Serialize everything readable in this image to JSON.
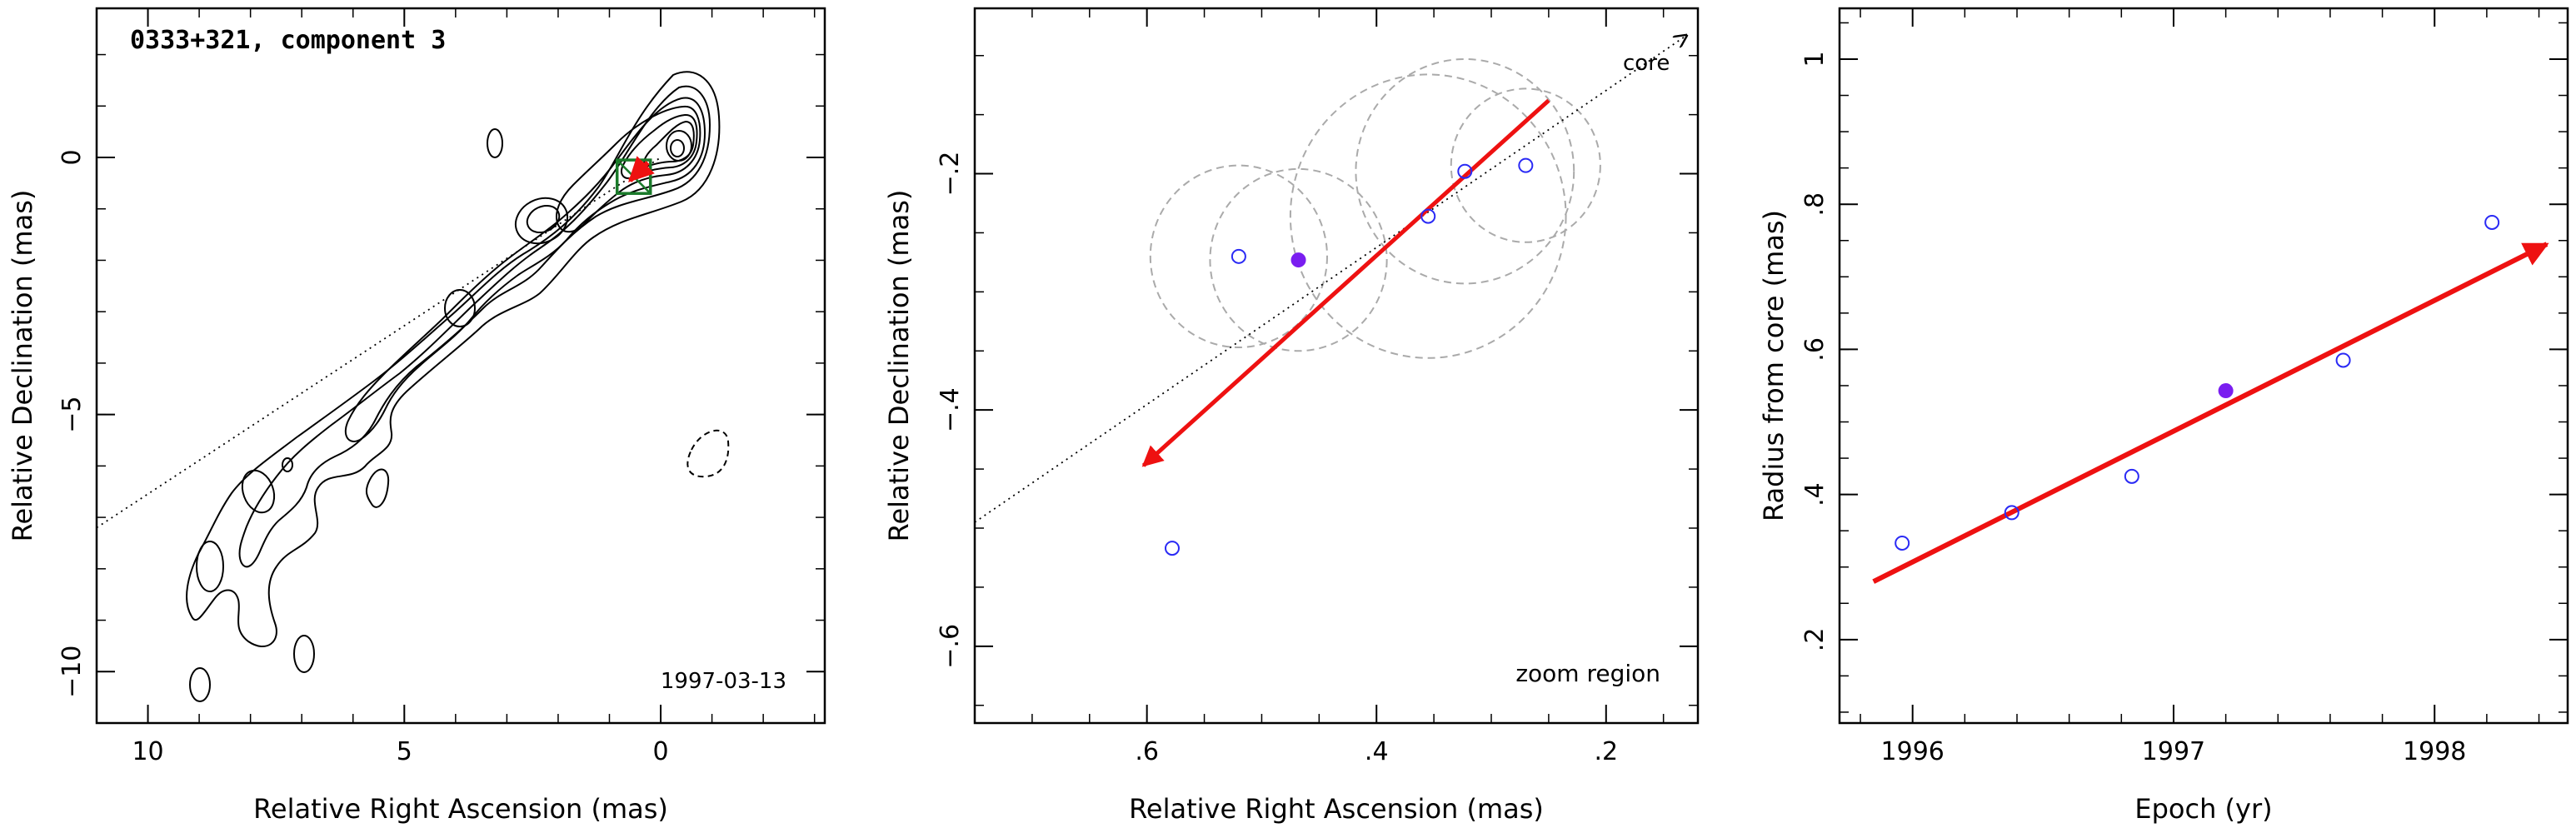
{
  "chart_data": [
    {
      "type": "contour",
      "title": "0333+321, component 3",
      "annotation": "1997-03-13",
      "xlabel": "Relative Right Ascension (mas)",
      "ylabel": "Relative Declination (mas)",
      "xlim": [
        11,
        -3.2
      ],
      "ylim": [
        -11,
        2.9
      ],
      "xticks": [
        10,
        5,
        0
      ],
      "yticks": [
        0,
        -5,
        -10
      ],
      "jet_axis_line": {
        "from": [
          11,
          -7.2
        ],
        "to": [
          0,
          0
        ]
      },
      "component_box": {
        "x": [
          0.85,
          0.2
        ],
        "y": [
          -0.7,
          -0.05
        ]
      },
      "motion_vector": {
        "from": [
          0.25,
          -0.1
        ],
        "to": [
          0.6,
          -0.45
        ]
      }
    },
    {
      "type": "scatter",
      "subtitle": "zoom region",
      "reference_label": "core",
      "xlabel": "Relative Right Ascension (mas)",
      "ylabel": "Relative Declination (mas)",
      "xlim": [
        0.75,
        0.12
      ],
      "ylim": [
        -0.665,
        -0.06
      ],
      "xticks": [
        0.6,
        0.4,
        0.2
      ],
      "yticks": [
        -0.2,
        -0.4,
        -0.6
      ],
      "points": [
        {
          "x": 0.578,
          "y": -0.517,
          "filled": false
        },
        {
          "x": 0.52,
          "y": -0.27,
          "filled": false
        },
        {
          "x": 0.468,
          "y": -0.273,
          "filled": true
        },
        {
          "x": 0.355,
          "y": -0.236,
          "filled": false
        },
        {
          "x": 0.323,
          "y": -0.198,
          "filled": false
        },
        {
          "x": 0.27,
          "y": -0.193,
          "filled": false
        }
      ],
      "error_circles": [
        {
          "x": 0.52,
          "y": -0.27,
          "r": 0.077
        },
        {
          "x": 0.468,
          "y": -0.273,
          "r": 0.077
        },
        {
          "x": 0.355,
          "y": -0.236,
          "r": 0.12
        },
        {
          "x": 0.323,
          "y": -0.198,
          "r": 0.095
        },
        {
          "x": 0.27,
          "y": -0.193,
          "r": 0.065
        }
      ],
      "jet_axis_line": {
        "from": [
          0.75,
          -0.495
        ],
        "to": [
          0.13,
          -0.083
        ]
      },
      "motion_vector": {
        "from": [
          0.25,
          -0.138
        ],
        "to": [
          0.603,
          -0.447
        ]
      }
    },
    {
      "type": "scatter",
      "xlabel": "Epoch (yr)",
      "ylabel": "Radius from core (mas)",
      "xlim": [
        1995.72,
        1998.51
      ],
      "ylim": [
        0.085,
        1.07
      ],
      "xticks": [
        1996,
        1997,
        1998
      ],
      "yticks": [
        0.2,
        0.4,
        0.6,
        0.8,
        1
      ],
      "points": [
        {
          "x": 1995.96,
          "y": 0.333,
          "filled": false
        },
        {
          "x": 1996.38,
          "y": 0.375,
          "filled": false
        },
        {
          "x": 1996.84,
          "y": 0.425,
          "filled": false
        },
        {
          "x": 1997.2,
          "y": 0.543,
          "filled": true
        },
        {
          "x": 1997.65,
          "y": 0.585,
          "filled": false
        },
        {
          "x": 1998.22,
          "y": 0.775,
          "filled": false
        }
      ],
      "fit_vector": {
        "from": [
          1995.85,
          0.28
        ],
        "to": [
          1998.43,
          0.745
        ]
      }
    }
  ],
  "colors": {
    "open_marker": "#2a2af5",
    "filled_marker": "#7a1ef0",
    "vector": "#ee1111",
    "component_box": "#1a7a2a",
    "error_circle": "#aaaaaa"
  }
}
